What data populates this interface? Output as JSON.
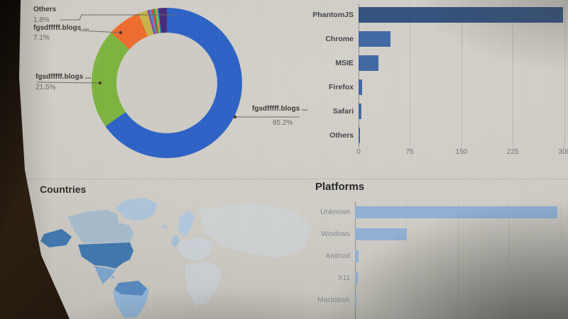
{
  "screen_background": "#cfccc5",
  "chart_data": [
    {
      "type": "pie",
      "donut": true,
      "title": "",
      "legend_position": "callout-labels",
      "slices": [
        {
          "label": "fgsdfffff.blogs ...",
          "value": 65.2,
          "pct_label": "65.2%",
          "color": "#2c61c6"
        },
        {
          "label": "fgsdfffff.blogs ...",
          "value": 21.5,
          "pct_label": "21.5%",
          "color": "#7cb43e"
        },
        {
          "label": "fgsdfffff.blogs ...",
          "value": 7.1,
          "pct_label": "7.1%",
          "color": "#ee6b2d"
        },
        {
          "label": "",
          "value": 2.0,
          "pct_label": "",
          "color": "#c6b34a"
        },
        {
          "label": "",
          "value": 0.45,
          "pct_label": "",
          "color": "#8a42a8"
        },
        {
          "label": "",
          "value": 0.45,
          "pct_label": "",
          "color": "#4a90e2"
        },
        {
          "label": "",
          "value": 0.4,
          "pct_label": "",
          "color": "#d64541"
        },
        {
          "label": "",
          "value": 0.4,
          "pct_label": "",
          "color": "#2f9e44"
        },
        {
          "label": "",
          "value": 0.35,
          "pct_label": "",
          "color": "#e9a13b"
        },
        {
          "label": "",
          "value": 0.35,
          "pct_label": "",
          "color": "#27a5b5"
        },
        {
          "label": "Others",
          "value": 1.8,
          "pct_label": "1.8%",
          "color": "#46297b"
        }
      ]
    },
    {
      "type": "bar",
      "orientation": "horizontal",
      "title": "",
      "xlim": [
        0,
        300
      ],
      "xtick_labels": [
        "0",
        "75",
        "150",
        "225",
        "300"
      ],
      "grid": true,
      "items": [
        {
          "label": "PhantomJS",
          "value": 298,
          "color": "#32517e"
        },
        {
          "label": "Chrome",
          "value": 47,
          "color": "#4068a4"
        },
        {
          "label": "MSIE",
          "value": 29,
          "color": "#4068a4"
        },
        {
          "label": "Firefox",
          "value": 5,
          "color": "#4068a4"
        },
        {
          "label": "Safari",
          "value": 4,
          "color": "#4068a4"
        },
        {
          "label": "Others",
          "value": 2,
          "color": "#4068a4"
        }
      ]
    },
    {
      "type": "bar",
      "orientation": "horizontal",
      "title": "Platforms",
      "xlim": [
        0,
        300
      ],
      "grid": false,
      "items": [
        {
          "label": "Unknown",
          "value": 295,
          "color": "#8fb0d4"
        },
        {
          "label": "Windows",
          "value": 75,
          "color": "#8fb0d4"
        },
        {
          "label": "Android",
          "value": 5,
          "color": "#8fb0d4"
        },
        {
          "label": "X11",
          "value": 4,
          "color": "#8fb0d4"
        },
        {
          "label": "Macintosh",
          "value": 2,
          "color": "#8fb0d4"
        }
      ]
    },
    {
      "type": "map",
      "title": "Countries",
      "region_colors": {
        "greenland": "#a7c2dc",
        "canada": "#a7bacc",
        "alaska": "#3e76ad",
        "us": "#3e76ad",
        "mexico": "#7ba3c9",
        "caribbean": "#86abd0",
        "south_america_north": "#5587bd",
        "south_america": "#8fb3d6",
        "iceland": "#a7c2dc",
        "uk": "#9dbeda",
        "scandinavia": "#abc7e0",
        "europe": "#c8d7e7",
        "asia": "#cfdceb",
        "africa": "#c9d8e6"
      }
    }
  ]
}
